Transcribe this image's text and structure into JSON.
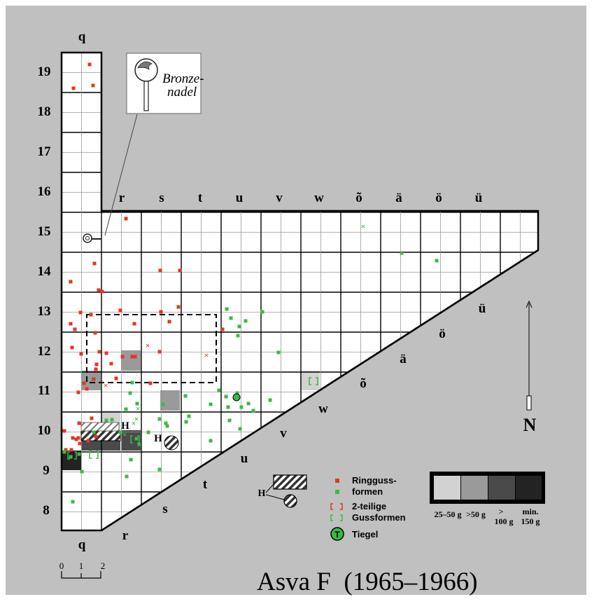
{
  "title": "Asva F  (1965–1966)",
  "grid": {
    "column_letters": [
      "r",
      "s",
      "t",
      "u",
      "v",
      "w",
      "õ",
      "ä",
      "ö",
      "ü"
    ],
    "row_numbers": [
      "19",
      "18",
      "17",
      "16",
      "15",
      "14",
      "13",
      "12",
      "11",
      "10",
      "9",
      "8"
    ],
    "q_label": "q",
    "diagonal_letters": [
      "r",
      "s",
      "t",
      "u",
      "v",
      "w",
      "õ",
      "ä",
      "ö",
      "ü"
    ]
  },
  "callout": {
    "line1": "Bronze-",
    "line2": "nadel"
  },
  "hearth_label": "H",
  "north_label": "N",
  "legend": {
    "ringguss_line1": "Ringguss-",
    "ringguss_line2": "formen",
    "twopart_line1": "2-teilige",
    "twopart_line2": "Gussformen",
    "tiegel": "Tiegel",
    "tiegel_symbol": "T",
    "hearth_label": "H"
  },
  "weight_scale": {
    "items": [
      {
        "line1": "25–50 g",
        "line2": ""
      },
      {
        "line1": ">50 g",
        "line2": ""
      },
      {
        "line1": ">",
        "line2": "100 g"
      },
      {
        "line1": "min.",
        "line2": "150 g"
      }
    ],
    "shades": [
      "#d2d2d2",
      "#9a9a9a",
      "#4a4a4a",
      "#232323"
    ]
  },
  "scale_bar": {
    "ticks": [
      "0",
      "1",
      "2"
    ]
  },
  "colors": {
    "background": "#c0c0c0",
    "red": "#e53524",
    "green": "#3cb84a",
    "grid": "#000000"
  }
}
